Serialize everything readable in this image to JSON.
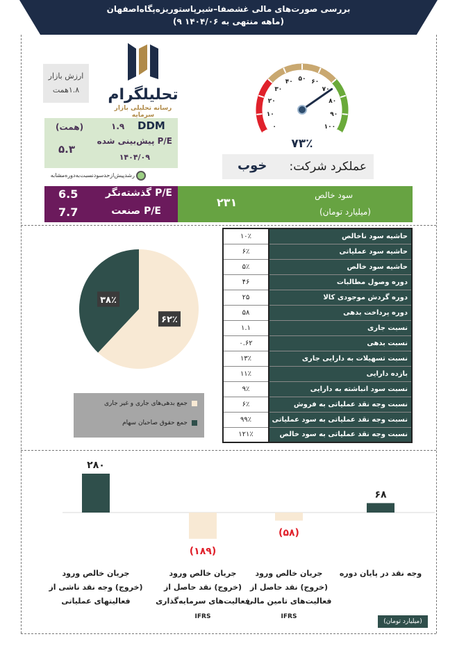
{
  "header": {
    "title": "بررسی صورت‌های مالی غشصفا–شیرپاستوریزه‌پگاه‌اصفهان",
    "subtitle": "(۹ ماهه منتهی به ۱۴۰۴/۰۶)"
  },
  "market_value": {
    "label": "ارزش بازار",
    "value": "۱.۸همت"
  },
  "logo": {
    "brand": "تحلیلگرام",
    "slogan": "رسانه تحلیلی بازار سرمایه"
  },
  "ddm": {
    "name": "DDM",
    "value": "۱.۹",
    "unit": "(همت)",
    "pe_forecast_label": "P/E پیش‌بینی شده",
    "pe_forecast_value": "۵.۳",
    "date": "۱۴۰۴/۰۹"
  },
  "note": "رشدپیش‌ازحدسودنسبت‌به‌دوره‌مشابه",
  "gauge": {
    "ticks": [
      "۰",
      "۱۰",
      "۲۰",
      "۳۰",
      "۴۰",
      "۵۰",
      "۶۰",
      "۷۰",
      "۸۰",
      "۹۰",
      "۱۰۰"
    ],
    "value": 73,
    "value_label": "۷۳٪",
    "colors": {
      "red": "#e0212b",
      "tan": "#c9a870",
      "green": "#6aaa3a",
      "needle": "#1d2c47"
    }
  },
  "performance": {
    "label": "عملکرد شرکت:",
    "value": "خوب"
  },
  "pe": {
    "ttm_label": "P/E گذشته‌نگر",
    "ttm_value": "6.5",
    "industry_label": "P/E صنعت",
    "industry_value": "7.7"
  },
  "net_profit": {
    "label": "سود خالص",
    "unit": "(میلیارد تومان)",
    "value": "۲۳۱"
  },
  "ratios": [
    {
      "label": "حاشیه سود ناخالص",
      "value": "۱۰٪"
    },
    {
      "label": "حاشیه سود عملیاتی",
      "value": "۶٪"
    },
    {
      "label": "حاشیه سود خالص",
      "value": "۵٪"
    },
    {
      "label": "دوره وصول مطالبات",
      "value": "۴۶"
    },
    {
      "label": "دوره گردش موجودی کالا",
      "value": "۲۵"
    },
    {
      "label": "دوره  پرداخت بدهی",
      "value": "۵۸"
    },
    {
      "label": "نسبت جاری",
      "value": "۱.۱"
    },
    {
      "label": "نسبت بدهی",
      "value": "۰.۶۲"
    },
    {
      "label": "نسبت  تسهیلات به دارایی جاری",
      "value": "۱۳٪"
    },
    {
      "label": "بازده دارایی",
      "value": "۱۱٪"
    },
    {
      "label": "نسبت سود انباشته به دارایی",
      "value": "۹٪"
    },
    {
      "label": "نسبت وجه نقد عملیاتی به فروش",
      "value": "۶٪"
    },
    {
      "label": "نسبت وجه نقد عملیاتی به سود عملیاتی",
      "value": "۹۹٪"
    },
    {
      "label": "نسبت وجه نقد عملیاتی به سود خالص",
      "value": "۱۲۱٪"
    }
  ],
  "pie_legend": {
    "liabilities": "جمع بدهی‌های جاری و غیر جاری",
    "equity": "جمع حقوق صاحبان سهام"
  },
  "bar_unit": "(میلیارد تومان)",
  "chart_data": [
    {
      "type": "pie",
      "labels": [
        "جمع بدهی‌های جاری و غیر جاری",
        "جمع حقوق صاحبان سهام"
      ],
      "values": [
        62,
        38
      ],
      "value_labels": [
        "۶۲٪",
        "۳۸٪"
      ],
      "colors": [
        "#f8e9d4",
        "#2f4f4b"
      ],
      "legend": "bottom"
    },
    {
      "type": "bar",
      "categories": [
        "جریان خالص ورود\n(خروج) وجه نقد ناشی از\nفعالیتهای عملیاتی",
        "جریان خالص ورود\n(خروج) نقد حاصل از\nفعالیت‌های سرمایه‌گذاری",
        "جریان خالص ورود\n(خروج) نقد حاصل از\nفعالیت‌های تامین مالی",
        "وجه نقد در پایان دوره"
      ],
      "values": [
        280,
        -189,
        -58,
        68
      ],
      "value_labels": [
        "۲۸۰",
        "(۱۸۹)",
        "(۵۸)",
        "۶۸"
      ],
      "notes": [
        "",
        "IFRS",
        "IFRS",
        ""
      ],
      "colors": {
        "positive": "#2f4f4b",
        "negative": "#f8e9d4",
        "negative_label": "#e0212b"
      }
    }
  ]
}
